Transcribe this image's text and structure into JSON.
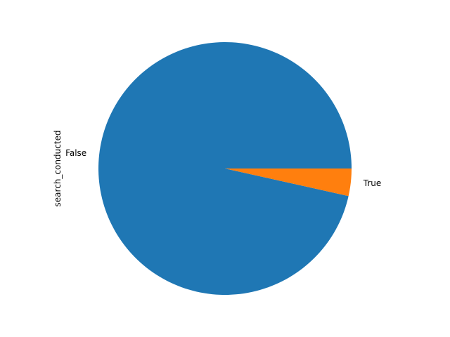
{
  "chart_data": {
    "type": "pie",
    "ylabel": "search_conducted",
    "categories": [
      "False",
      "True"
    ],
    "values": [
      96.5,
      3.5
    ],
    "colors": [
      "#1f77b4",
      "#ff7f0e"
    ],
    "start_angle_deg": 0,
    "direction": "counterclockwise"
  }
}
